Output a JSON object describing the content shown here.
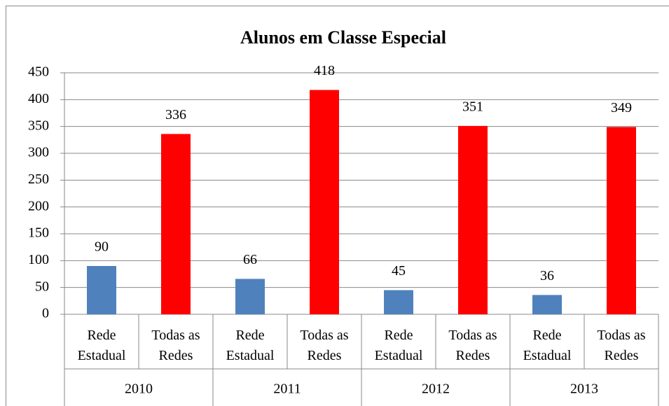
{
  "chart_data": {
    "type": "bar",
    "title": "Alunos em Classe Especial",
    "categories": [
      "Rede Estadual",
      "Todas as Redes",
      "Rede Estadual",
      "Todas as Redes",
      "Rede Estadual",
      "Todas as Redes",
      "Rede Estadual",
      "Todas as Redes"
    ],
    "group_labels": [
      "2010",
      "2011",
      "2012",
      "2013"
    ],
    "values": [
      90,
      336,
      66,
      418,
      45,
      351,
      36,
      349
    ],
    "colors": [
      "#4f81bd",
      "#ff0000",
      "#4f81bd",
      "#ff0000",
      "#4f81bd",
      "#ff0000",
      "#4f81bd",
      "#ff0000"
    ],
    "ylim": [
      0,
      450
    ],
    "yticks": [
      0,
      50,
      100,
      150,
      200,
      250,
      300,
      350,
      400,
      450
    ],
    "grid": true
  }
}
